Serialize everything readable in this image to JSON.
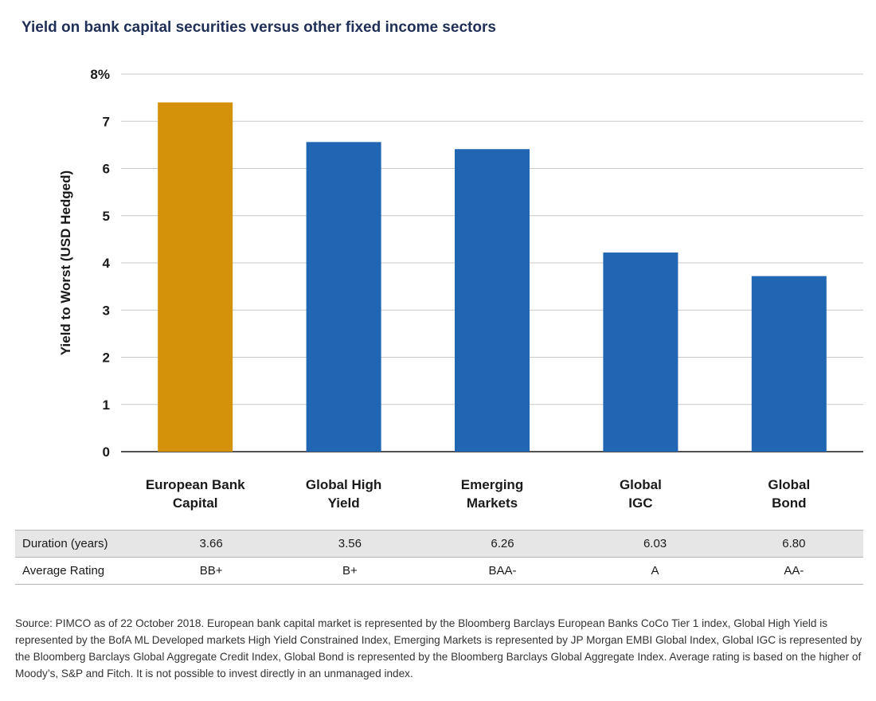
{
  "chart_data": {
    "type": "bar",
    "title": "Yield on bank capital securities versus other fixed income sectors",
    "ylabel": "Yield to Worst (USD Hedged)",
    "xlabel": "",
    "ylim": [
      0,
      8
    ],
    "yticks": [
      "0",
      "1",
      "2",
      "3",
      "4",
      "5",
      "6",
      "7",
      "8%"
    ],
    "grid": true,
    "categories": [
      [
        "European Bank",
        "Capital"
      ],
      [
        "Global High",
        "Yield"
      ],
      [
        "Emerging",
        "Markets"
      ],
      [
        "Global",
        "IGC"
      ],
      [
        "Global",
        "Bond"
      ]
    ],
    "values": [
      7.4,
      6.56,
      6.41,
      4.22,
      3.72
    ],
    "colors": [
      "#d4920a",
      "#2166b3",
      "#2166b3",
      "#2166b3",
      "#2166b3"
    ]
  },
  "table": {
    "rows": [
      {
        "label": "Duration (years)",
        "values": [
          "3.66",
          "3.56",
          "6.26",
          "6.03",
          "6.80"
        ]
      },
      {
        "label": "Average Rating",
        "values": [
          "BB+",
          "B+",
          "BAA-",
          "A",
          "AA-"
        ]
      }
    ]
  },
  "source": "Source: PIMCO as of 22 October 2018. European bank capital market is represented by the Bloomberg Barclays European Banks CoCo Tier 1 index, Global High Yield is represented by the BofA ML Developed markets High Yield Constrained Index, Emerging Markets is represented by JP Morgan EMBI Global Index, Global IGC is represented by the Bloomberg Barclays Global Aggregate Credit Index, Global Bond is represented by the Bloomberg Barclays Global Aggregate Index. Average rating is based on the higher of Moody’s, S&P and Fitch. It is not possible to invest directly in an unmanaged index."
}
